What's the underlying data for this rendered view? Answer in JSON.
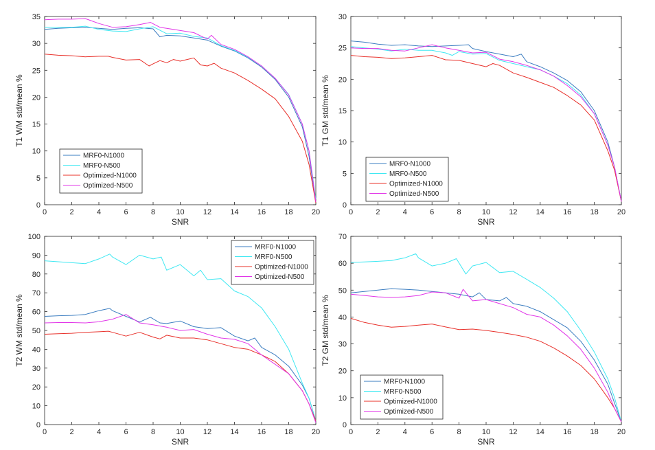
{
  "colors": {
    "MRF0-N1000": "#3a7cc0",
    "MRF0-N500": "#3fe8f2",
    "Optimized-N1000": "#e8302a",
    "Optimized-N500": "#e135e8",
    "axis": "#262626"
  },
  "chart_data": [
    {
      "type": "line",
      "xlabel": "SNR",
      "ylabel": "T1 WM std/mean %",
      "xlim": [
        0,
        20
      ],
      "ylim": [
        0,
        35
      ],
      "xticks": [
        0,
        2,
        4,
        6,
        8,
        10,
        12,
        14,
        16,
        18,
        20
      ],
      "yticks": [
        0,
        5,
        10,
        15,
        20,
        25,
        30,
        35
      ],
      "legend": "bottom-left",
      "series": [
        {
          "name": "MRF0-N1000",
          "x": [
            0,
            1,
            2,
            3,
            4,
            5,
            6,
            7,
            8,
            8.5,
            9,
            10,
            11,
            12,
            13,
            14,
            15,
            16,
            17,
            18,
            19,
            19.5,
            20
          ],
          "values": [
            32.6,
            32.8,
            32.9,
            33,
            32.8,
            32.6,
            32.8,
            32.9,
            32.7,
            31.2,
            31.5,
            31.4,
            31,
            30.6,
            29.5,
            28.6,
            27.3,
            25.6,
            23.3,
            20,
            14.5,
            9,
            0.5
          ]
        },
        {
          "name": "MRF0-N500",
          "x": [
            0,
            1,
            2,
            3,
            4,
            5,
            6,
            7,
            8,
            9,
            10,
            11,
            12,
            13,
            14,
            15,
            16,
            17,
            18,
            19,
            19.5,
            20
          ],
          "values": [
            33,
            33,
            33,
            33.2,
            32.6,
            32.3,
            32.2,
            32.7,
            33.1,
            31.8,
            31.9,
            31.3,
            31,
            29.6,
            28.7,
            27.4,
            25.8,
            23.5,
            20.5,
            15,
            10,
            1
          ]
        },
        {
          "name": "Optimized-N1000",
          "x": [
            0,
            1,
            2,
            3,
            4,
            4.7,
            5,
            6,
            7,
            7.7,
            8,
            8.5,
            9,
            9.5,
            10,
            10.5,
            11,
            11.5,
            12,
            12.5,
            13,
            14,
            15,
            16,
            17,
            18,
            19,
            19.5,
            20
          ],
          "values": [
            28,
            27.8,
            27.7,
            27.5,
            27.6,
            27.6,
            27.4,
            26.9,
            27,
            25.8,
            26.2,
            26.8,
            26.4,
            27,
            26.7,
            27,
            27.3,
            26,
            25.8,
            26.3,
            25.4,
            24.5,
            23.1,
            21.5,
            19.7,
            16.4,
            11.8,
            7.5,
            0.3
          ]
        },
        {
          "name": "Optimized-N500",
          "x": [
            0,
            1,
            2,
            3,
            4,
            5,
            6,
            7,
            7.8,
            8.5,
            9,
            10,
            11,
            12,
            12.3,
            13,
            14,
            15,
            16,
            17,
            18,
            19,
            19.5,
            20
          ],
          "values": [
            34.4,
            34.5,
            34.5,
            34.6,
            33.7,
            33,
            33.1,
            33.5,
            33.9,
            33,
            32.8,
            32.4,
            32,
            30.8,
            31.5,
            29.8,
            28.9,
            27.5,
            25.8,
            23.5,
            20.4,
            15,
            10,
            0.5
          ]
        }
      ]
    },
    {
      "type": "line",
      "xlabel": "SNR",
      "ylabel": "T1 GM std/mean %",
      "xlim": [
        0,
        20
      ],
      "ylim": [
        0,
        30
      ],
      "xticks": [
        0,
        2,
        4,
        6,
        8,
        10,
        12,
        14,
        16,
        18,
        20
      ],
      "yticks": [
        0,
        5,
        10,
        15,
        20,
        25,
        30
      ],
      "legend": "bottom-left",
      "series": [
        {
          "name": "MRF0-N1000",
          "x": [
            0,
            1,
            2,
            3,
            4,
            5,
            6,
            7,
            8,
            8.7,
            9,
            10,
            11,
            12,
            12.6,
            13,
            14,
            15,
            16,
            17,
            18,
            19,
            19.5,
            20
          ],
          "values": [
            26.1,
            25.9,
            25.6,
            25.4,
            25.5,
            25.3,
            25.2,
            25.3,
            25.4,
            25.5,
            24.9,
            24.4,
            24,
            23.6,
            24,
            22.8,
            22,
            21,
            19.8,
            18,
            15,
            10,
            6,
            0.5
          ]
        },
        {
          "name": "MRF0-N500",
          "x": [
            0,
            1,
            2,
            3,
            4,
            5,
            6,
            7,
            7.5,
            8,
            9,
            10,
            11,
            12,
            13,
            14,
            15,
            16,
            17,
            18,
            19,
            19.5,
            20
          ],
          "values": [
            25.2,
            25,
            24.8,
            24.5,
            24.8,
            24.6,
            24.6,
            24.2,
            23.8,
            24.4,
            24,
            24.1,
            23,
            22.5,
            22,
            21.5,
            20.5,
            19.3,
            17.5,
            14.5,
            9.5,
            6,
            0.5
          ]
        },
        {
          "name": "Optimized-N1000",
          "x": [
            0,
            1,
            2,
            3,
            4,
            5,
            6,
            7,
            8,
            9,
            10,
            10.5,
            11,
            12,
            13,
            14,
            15,
            16,
            17,
            18,
            19,
            19.5,
            20
          ],
          "values": [
            23.8,
            23.6,
            23.5,
            23.3,
            23.4,
            23.6,
            23.8,
            23.1,
            23,
            22.5,
            22,
            22.5,
            22.2,
            21,
            20.3,
            19.5,
            18.7,
            17.4,
            15.9,
            13.5,
            8.6,
            5.5,
            0.5
          ]
        },
        {
          "name": "Optimized-N500",
          "x": [
            0,
            1,
            2,
            3,
            4,
            5,
            6,
            7,
            8,
            9,
            10,
            11,
            12,
            13,
            14,
            15,
            16,
            17,
            18,
            19,
            19.5,
            20
          ],
          "values": [
            25,
            24.9,
            24.9,
            24.6,
            24.5,
            25,
            25.5,
            25,
            24.6,
            24.2,
            24.3,
            23.2,
            22.8,
            22.2,
            21.5,
            20.5,
            19,
            17.2,
            14.5,
            9.5,
            6,
            0.5
          ]
        }
      ]
    },
    {
      "type": "line",
      "xlabel": "SNR",
      "ylabel": "T2 WM std/mean %",
      "xlim": [
        0,
        20
      ],
      "ylim": [
        0,
        100
      ],
      "xticks": [
        0,
        2,
        4,
        6,
        8,
        10,
        12,
        14,
        16,
        18,
        20
      ],
      "yticks": [
        0,
        10,
        20,
        30,
        40,
        50,
        60,
        70,
        80,
        90,
        100
      ],
      "legend": "top-right",
      "series": [
        {
          "name": "MRF0-N1000",
          "x": [
            0,
            1,
            2,
            3,
            4,
            4.8,
            5,
            6,
            7,
            7.8,
            8.5,
            9,
            10,
            11,
            12,
            13,
            14,
            15,
            15.5,
            16,
            17,
            18,
            19,
            19.5,
            20
          ],
          "values": [
            57.5,
            57.8,
            58,
            58.5,
            60.5,
            61.7,
            60.5,
            57.5,
            54.5,
            57,
            54,
            53.7,
            55,
            52,
            51,
            51.5,
            47,
            44.5,
            46,
            41,
            37,
            31,
            21,
            14,
            2
          ]
        },
        {
          "name": "MRF0-N500",
          "x": [
            0,
            1,
            2,
            3,
            4,
            4.8,
            5,
            6,
            7,
            8,
            8.6,
            9,
            10,
            11,
            11.5,
            12,
            13,
            14,
            15,
            16,
            17,
            18,
            19,
            19.5,
            20
          ],
          "values": [
            87,
            86.5,
            86,
            85.5,
            88,
            90.6,
            89,
            85,
            90,
            88,
            89,
            82,
            85,
            79,
            82,
            77,
            77.5,
            71,
            68,
            62,
            52,
            40,
            22,
            14,
            2
          ]
        },
        {
          "name": "Optimized-N1000",
          "x": [
            0,
            1,
            2,
            3,
            4,
            4.7,
            5,
            6,
            7,
            8,
            8.5,
            9,
            10,
            11,
            12,
            13,
            14,
            15,
            16,
            17,
            18,
            19,
            19.5,
            20
          ],
          "values": [
            48,
            48.3,
            48.5,
            49,
            49.3,
            49.6,
            49,
            47,
            49,
            46.5,
            45.5,
            47.5,
            46,
            46,
            45,
            43,
            41,
            40,
            37,
            33.5,
            27,
            18,
            11,
            2
          ]
        },
        {
          "name": "Optimized-N500",
          "x": [
            0,
            1,
            2,
            3,
            4,
            5,
            6,
            7,
            8,
            9,
            10,
            11,
            12,
            13,
            14,
            15,
            16,
            17,
            18,
            19,
            19.5,
            20
          ],
          "values": [
            54,
            54.2,
            54.2,
            54,
            54.6,
            56,
            58.5,
            54,
            53,
            51.7,
            50,
            50.5,
            48,
            46,
            45.3,
            43,
            37,
            32,
            27,
            18,
            11,
            1
          ]
        }
      ]
    },
    {
      "type": "line",
      "xlabel": "SNR",
      "ylabel": "T2 GM std/mean %",
      "xlim": [
        0,
        20
      ],
      "ylim": [
        0,
        70
      ],
      "xticks": [
        0,
        2,
        4,
        6,
        8,
        10,
        12,
        14,
        16,
        18,
        20
      ],
      "yticks": [
        0,
        10,
        20,
        30,
        40,
        50,
        60,
        70
      ],
      "legend": "bottom-left",
      "series": [
        {
          "name": "MRF0-N1000",
          "x": [
            0,
            1,
            2,
            3,
            4,
            5,
            6,
            7,
            8,
            9,
            9.5,
            10,
            11,
            11.5,
            12,
            13,
            14,
            15,
            16,
            17,
            18,
            19,
            19.5,
            20
          ],
          "values": [
            49,
            49.5,
            50,
            50.5,
            50.3,
            50,
            49.5,
            49,
            48.5,
            47.5,
            49,
            46.5,
            46,
            47.3,
            45,
            44,
            42,
            39,
            36,
            31,
            24,
            15,
            8,
            1
          ]
        },
        {
          "name": "MRF0-N500",
          "x": [
            0,
            1,
            2,
            3,
            4,
            4.8,
            5,
            6,
            7,
            7.8,
            8.5,
            9,
            10,
            11,
            12,
            13,
            14,
            15,
            16,
            17,
            18,
            19,
            19.5,
            20
          ],
          "values": [
            60.3,
            60.5,
            60.7,
            61,
            62,
            63.5,
            62,
            59,
            60,
            61.7,
            56,
            59,
            60.3,
            56.5,
            57,
            54,
            51,
            47,
            42,
            35,
            27,
            17,
            10,
            1
          ]
        },
        {
          "name": "Optimized-N1000",
          "x": [
            0,
            1,
            2,
            3,
            4,
            5,
            6,
            7,
            8,
            9,
            10,
            11,
            12,
            13,
            14,
            15,
            16,
            17,
            18,
            19,
            19.5,
            20
          ],
          "values": [
            39.5,
            38,
            37,
            36.2,
            36.5,
            37,
            37.4,
            36.3,
            35.3,
            35.5,
            35,
            34.3,
            33.5,
            32.5,
            31,
            28.5,
            25.5,
            22,
            17,
            10,
            6,
            1
          ]
        },
        {
          "name": "Optimized-N500",
          "x": [
            0,
            1,
            2,
            3,
            4,
            5,
            6,
            7,
            8,
            8.3,
            9,
            10,
            11,
            12,
            13,
            14,
            15,
            16,
            17,
            18,
            19,
            19.5,
            20
          ],
          "values": [
            48.5,
            48,
            47.5,
            47.3,
            47.5,
            48,
            49.3,
            49,
            47,
            50.3,
            46,
            46.5,
            45,
            43.5,
            41,
            40,
            37,
            33,
            28,
            21,
            12,
            6,
            1
          ]
        }
      ]
    }
  ]
}
